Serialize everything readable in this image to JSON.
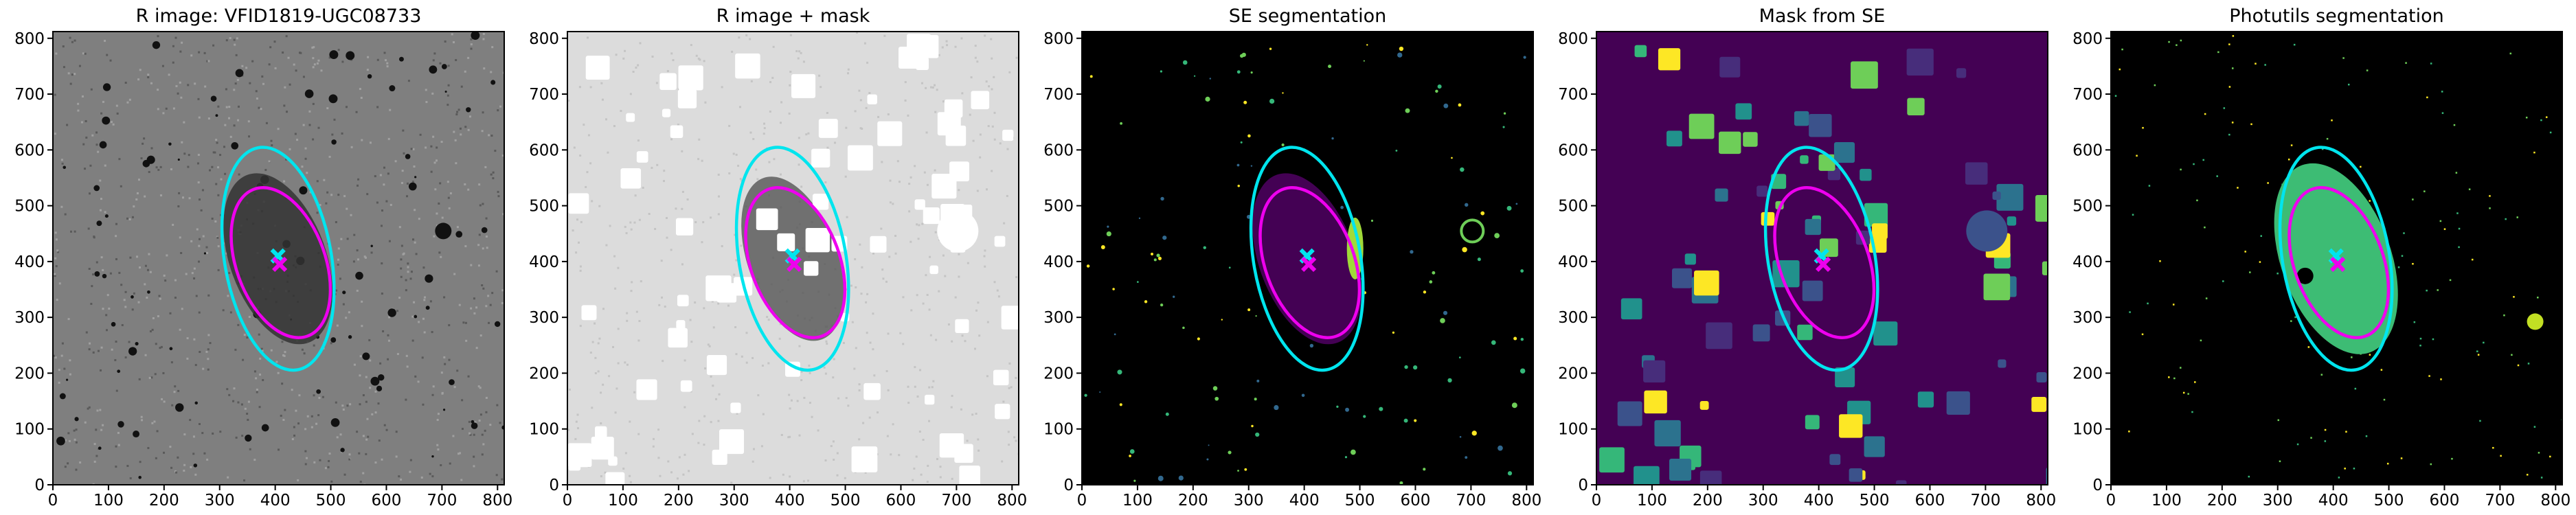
{
  "chart_data": [
    {
      "type": "image",
      "title": "R image: VFID1819-UGC08733",
      "background": "#7f7f7f",
      "xlim": [
        0,
        812
      ],
      "ylim": [
        0,
        812
      ],
      "xticks": [
        0,
        100,
        200,
        300,
        400,
        500,
        600,
        700,
        800
      ],
      "yticks": [
        0,
        100,
        200,
        300,
        400,
        500,
        600,
        700,
        800
      ],
      "ellipses": [
        {
          "color": "#00e5ee",
          "cx": 405,
          "cy": 405,
          "a": 202,
          "b": 96,
          "angle": 10
        },
        {
          "color": "#ee00ee",
          "cx": 410,
          "cy": 398,
          "a": 140,
          "b": 80,
          "angle": 20
        }
      ],
      "markers": [
        {
          "color": "#00e5ee",
          "x": 405,
          "y": 410
        },
        {
          "color": "#ee00ee",
          "x": 408,
          "y": 395
        }
      ]
    },
    {
      "type": "image",
      "title": "R image + mask",
      "background": "#dcdcdc",
      "xlim": [
        0,
        812
      ],
      "ylim": [
        0,
        812
      ],
      "xticks": [
        0,
        100,
        200,
        300,
        400,
        500,
        600,
        700,
        800
      ],
      "yticks": [
        0,
        100,
        200,
        300,
        400,
        500,
        600,
        700,
        800
      ],
      "ellipses": [
        {
          "color": "#00e5ee",
          "cx": 405,
          "cy": 405,
          "a": 202,
          "b": 96,
          "angle": 10
        },
        {
          "color": "#ee00ee",
          "cx": 410,
          "cy": 398,
          "a": 140,
          "b": 80,
          "angle": 20
        }
      ],
      "markers": [
        {
          "color": "#00e5ee",
          "x": 405,
          "y": 410
        },
        {
          "color": "#ee00ee",
          "x": 408,
          "y": 395
        }
      ]
    },
    {
      "type": "image",
      "title": "SE segmentation",
      "background": "#000000",
      "xlim": [
        0,
        812
      ],
      "ylim": [
        0,
        812
      ],
      "xticks": [
        0,
        100,
        200,
        300,
        400,
        500,
        600,
        700,
        800
      ],
      "yticks": [
        0,
        100,
        200,
        300,
        400,
        500,
        600,
        700,
        800
      ],
      "ellipses": [
        {
          "color": "#00e5ee",
          "cx": 405,
          "cy": 405,
          "a": 202,
          "b": 96,
          "angle": 10
        },
        {
          "color": "#ee00ee",
          "cx": 410,
          "cy": 398,
          "a": 140,
          "b": 80,
          "angle": 20
        }
      ],
      "markers": [
        {
          "color": "#00e5ee",
          "x": 405,
          "y": 410
        },
        {
          "color": "#ee00ee",
          "x": 408,
          "y": 395
        }
      ]
    },
    {
      "type": "image",
      "title": "Mask from SE",
      "background": "#440154",
      "xlim": [
        0,
        812
      ],
      "ylim": [
        0,
        812
      ],
      "xticks": [
        0,
        100,
        200,
        300,
        400,
        500,
        600,
        700,
        800
      ],
      "yticks": [
        0,
        100,
        200,
        300,
        400,
        500,
        600,
        700,
        800
      ],
      "ellipses": [
        {
          "color": "#00e5ee",
          "cx": 405,
          "cy": 405,
          "a": 202,
          "b": 96,
          "angle": 10
        },
        {
          "color": "#ee00ee",
          "cx": 410,
          "cy": 398,
          "a": 140,
          "b": 80,
          "angle": 20
        }
      ],
      "markers": [
        {
          "color": "#00e5ee",
          "x": 405,
          "y": 410
        },
        {
          "color": "#ee00ee",
          "x": 408,
          "y": 395
        }
      ]
    },
    {
      "type": "image",
      "title": "Photutils segmentation",
      "background": "#000000",
      "xlim": [
        0,
        812
      ],
      "ylim": [
        0,
        812
      ],
      "xticks": [
        0,
        100,
        200,
        300,
        400,
        500,
        600,
        700,
        800
      ],
      "yticks": [
        0,
        100,
        200,
        300,
        400,
        500,
        600,
        700,
        800
      ],
      "ellipses": [
        {
          "color": "#00e5ee",
          "cx": 405,
          "cy": 405,
          "a": 202,
          "b": 96,
          "angle": 10
        },
        {
          "color": "#ee00ee",
          "cx": 410,
          "cy": 398,
          "a": 140,
          "b": 80,
          "angle": 20
        }
      ],
      "markers": [
        {
          "color": "#00e5ee",
          "x": 405,
          "y": 410
        },
        {
          "color": "#ee00ee",
          "x": 408,
          "y": 395
        }
      ]
    }
  ]
}
